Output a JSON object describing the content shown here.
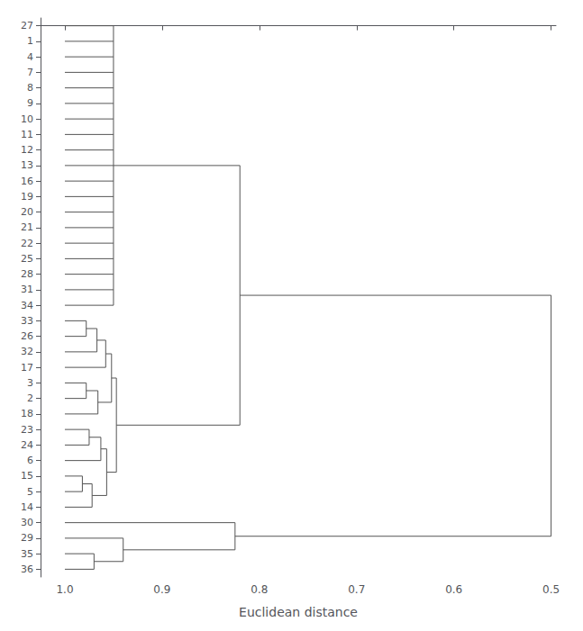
{
  "chart_data": {
    "type": "dendrogram",
    "xlabel": "Euclidean distance",
    "labels": [
      "27",
      "1",
      "4",
      "7",
      "8",
      "9",
      "10",
      "11",
      "12",
      "13",
      "16",
      "19",
      "20",
      "21",
      "22",
      "25",
      "28",
      "31",
      "34",
      "33",
      "26",
      "32",
      "17",
      "3",
      "2",
      "18",
      "23",
      "24",
      "6",
      "15",
      "5",
      "14",
      "30",
      "29",
      "35",
      "36"
    ],
    "leaf_height": 1.0,
    "tree": {
      "height": 0.5,
      "children": [
        {
          "height": 0.82,
          "children": [
            {
              "height": 0.95,
              "children": [
                "27",
                "1",
                "4",
                "7",
                "8",
                "9",
                "10",
                "11",
                "12",
                "13",
                "16",
                "19",
                "20",
                "21",
                "22",
                "25",
                "28",
                "31",
                "34"
              ]
            },
            {
              "height": 0.947,
              "children": [
                {
                  "height": 0.952,
                  "children": [
                    {
                      "height": 0.958,
                      "children": [
                        {
                          "height": 0.967,
                          "children": [
                            {
                              "height": 0.978,
                              "children": [
                                "33",
                                "26"
                              ]
                            },
                            "32"
                          ]
                        },
                        "17"
                      ]
                    },
                    {
                      "height": 0.966,
                      "children": [
                        {
                          "height": 0.978,
                          "children": [
                            "3",
                            "2"
                          ]
                        },
                        "18"
                      ]
                    }
                  ]
                },
                {
                  "height": 0.957,
                  "children": [
                    {
                      "height": 0.963,
                      "children": [
                        {
                          "height": 0.975,
                          "children": [
                            "23",
                            "24"
                          ]
                        },
                        "6"
                      ]
                    },
                    {
                      "height": 0.972,
                      "children": [
                        {
                          "height": 0.982,
                          "children": [
                            "15",
                            "5"
                          ]
                        },
                        "14"
                      ]
                    }
                  ]
                }
              ]
            }
          ]
        },
        {
          "height": 0.825,
          "children": [
            "30",
            {
              "height": 0.94,
              "children": [
                "29",
                {
                  "height": 0.97,
                  "children": [
                    "35",
                    "36"
                  ]
                }
              ]
            }
          ]
        }
      ]
    },
    "xlim": [
      1.025,
      0.495
    ],
    "xticks": [
      {
        "value": 1.0,
        "label": "1.0"
      },
      0.9,
      0.8,
      0.7,
      0.6,
      0.5
    ],
    "color": "#555555",
    "grid": false
  }
}
